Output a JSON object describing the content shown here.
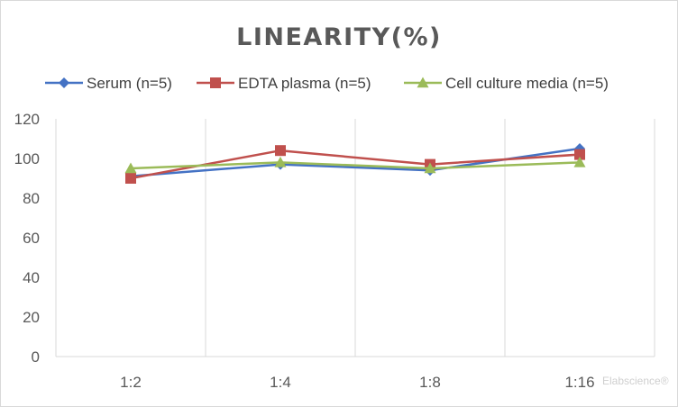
{
  "chart_data": {
    "type": "line",
    "title": "LINEARITY(%)",
    "categories": [
      "1:2",
      "1:4",
      "1:8",
      "1:16"
    ],
    "ylim": [
      0,
      120
    ],
    "yticks": [
      0,
      20,
      40,
      60,
      80,
      100,
      120
    ],
    "grid": "vertical",
    "legend": "top",
    "series": [
      {
        "name": "Serum (n=5)",
        "values": [
          91,
          97,
          94,
          105
        ],
        "color": "#4472c4",
        "marker": "diamond"
      },
      {
        "name": "EDTA plasma (n=5)",
        "values": [
          90,
          104,
          97,
          102
        ],
        "color": "#c0504d",
        "marker": "square"
      },
      {
        "name": "Cell culture media (n=5)",
        "values": [
          95,
          98,
          95,
          98
        ],
        "color": "#9bbb59",
        "marker": "triangle"
      }
    ]
  },
  "watermark": "Elabscience®"
}
